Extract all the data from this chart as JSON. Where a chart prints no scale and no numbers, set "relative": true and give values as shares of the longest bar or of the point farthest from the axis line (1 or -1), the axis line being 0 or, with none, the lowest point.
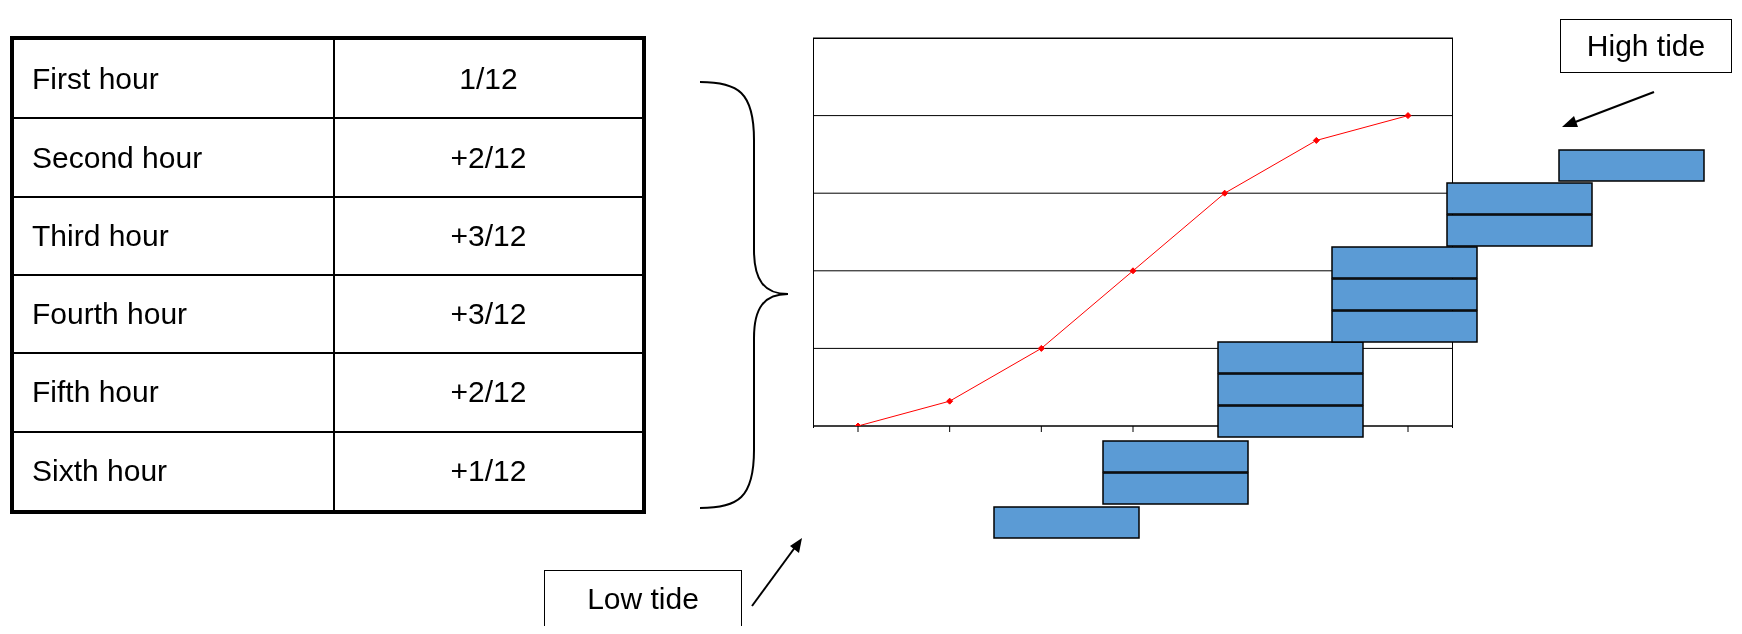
{
  "chart_data": {
    "type": "line",
    "relative": true,
    "categories": [
      null,
      null,
      null,
      null,
      null,
      null,
      null
    ],
    "series": [
      {
        "color": "#ff0000",
        "values": [
          0,
          0.08,
          0.25,
          0.5,
          0.75,
          0.92,
          1
        ]
      }
    ],
    "marker": "diamond",
    "grid": "y",
    "annotations": [
      "First hour",
      "1/12",
      "Second hour",
      "+2/12",
      "Third hour",
      "+3/12",
      "Fourth hour",
      "+3/12",
      "Fifth hour",
      "+2/12",
      "Sixth hour",
      "+1/12",
      "High tide",
      "Low tide"
    ]
  }
}
